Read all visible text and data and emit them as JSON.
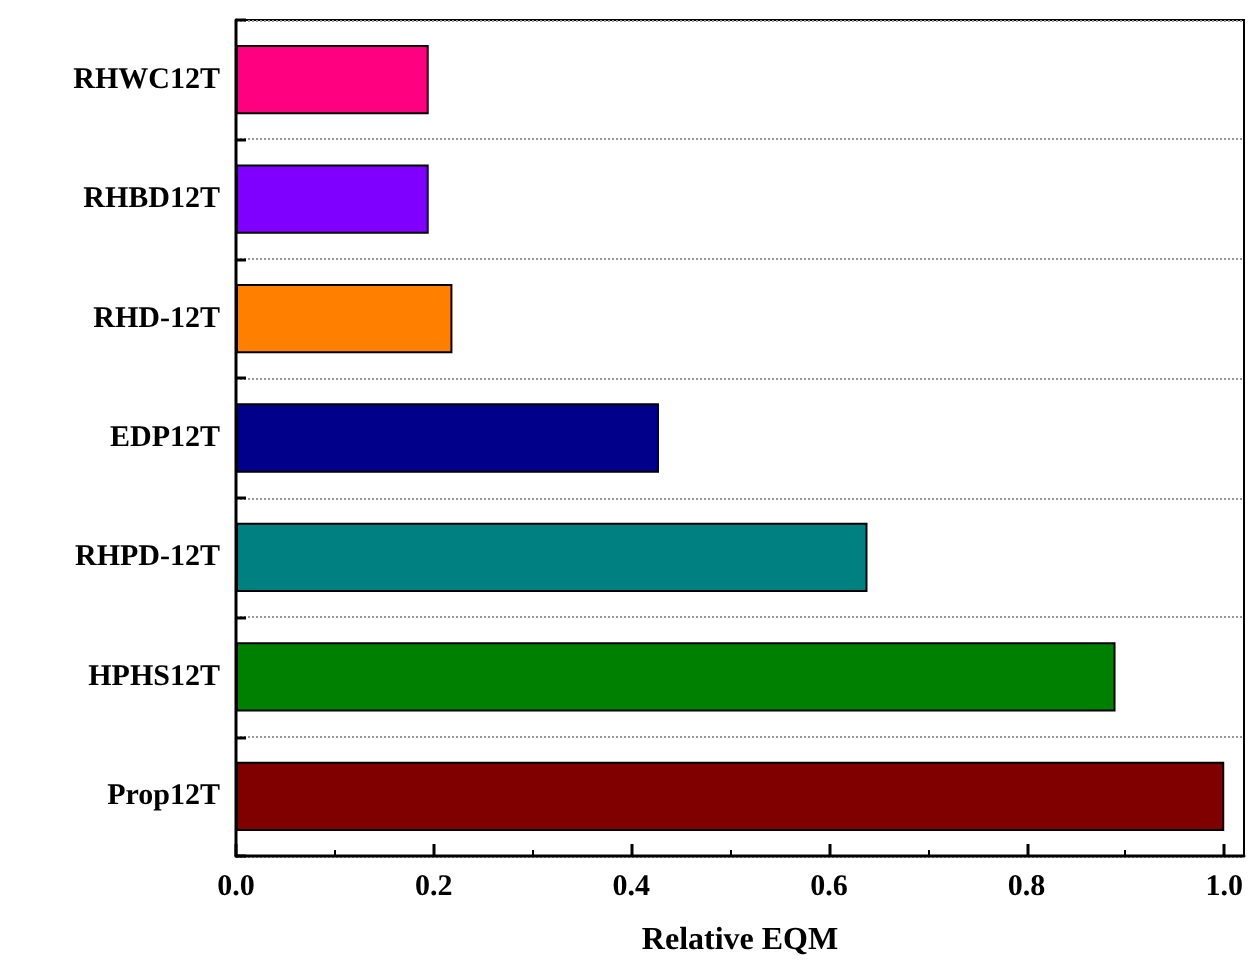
{
  "chart_data": {
    "type": "bar",
    "orientation": "horizontal",
    "xlabel": "Relative EQM",
    "categories": [
      "RHWC12T",
      "RHBD12T",
      "RHD-12T",
      "EDP12T",
      "RHPD-12T",
      "HPHS12T",
      "Prop12T"
    ],
    "values": [
      0.195,
      0.195,
      0.219,
      0.428,
      0.639,
      0.89,
      1.0
    ],
    "colors": [
      "#ff0080",
      "#8000ff",
      "#ff8000",
      "#00008b",
      "#008080",
      "#008000",
      "#800000"
    ],
    "xlim": [
      0,
      1.02
    ],
    "xticks": [
      {
        "value": 0,
        "label": "0.0"
      },
      {
        "value": 0.2,
        "label": "0.2"
      },
      {
        "value": 0.4,
        "label": "0.4"
      },
      {
        "value": 0.6,
        "label": "0.6"
      },
      {
        "value": 0.8,
        "label": "0.8"
      },
      {
        "value": 1,
        "label": "1.0"
      }
    ],
    "grid": "y"
  }
}
